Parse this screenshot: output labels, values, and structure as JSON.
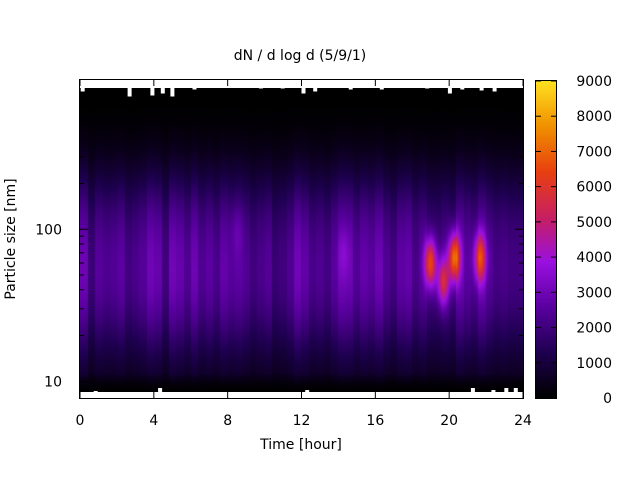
{
  "chart_data": {
    "type": "heatmap",
    "title": "dN / d log d (5/9/1)",
    "xlabel": "Time [hour]",
    "ylabel": "Particle size [nm]",
    "x_range": [
      0,
      24
    ],
    "x_ticks": [
      0,
      4,
      8,
      12,
      16,
      20,
      24
    ],
    "y_scale": "log",
    "y_range": [
      8.5,
      850
    ],
    "y_ticks": [
      10,
      100
    ],
    "colorbar": {
      "range": [
        0,
        9000
      ],
      "ticks": [
        0,
        1000,
        2000,
        3000,
        4000,
        5000,
        6000,
        7000,
        8000,
        9000
      ],
      "palette": [
        "#000000",
        "#1e0050",
        "#5a00a0",
        "#9a10e0",
        "#c82060",
        "#e84010",
        "#f09000",
        "#ffe020"
      ]
    },
    "background_level": {
      "peak_size_nm": 45,
      "peak_value": 2200
    },
    "events": [
      {
        "time_hour": 19.0,
        "size_nm": 60,
        "value": 6500
      },
      {
        "time_hour": 19.7,
        "size_nm": 45,
        "value": 5500
      },
      {
        "time_hour": 20.3,
        "size_nm": 65,
        "value": 7200
      },
      {
        "time_hour": 21.7,
        "size_nm": 65,
        "value": 6000
      },
      {
        "time_hour": 8.5,
        "size_nm": 100,
        "value": 2500
      },
      {
        "time_hour": 14.3,
        "size_nm": 70,
        "value": 2600
      }
    ]
  }
}
